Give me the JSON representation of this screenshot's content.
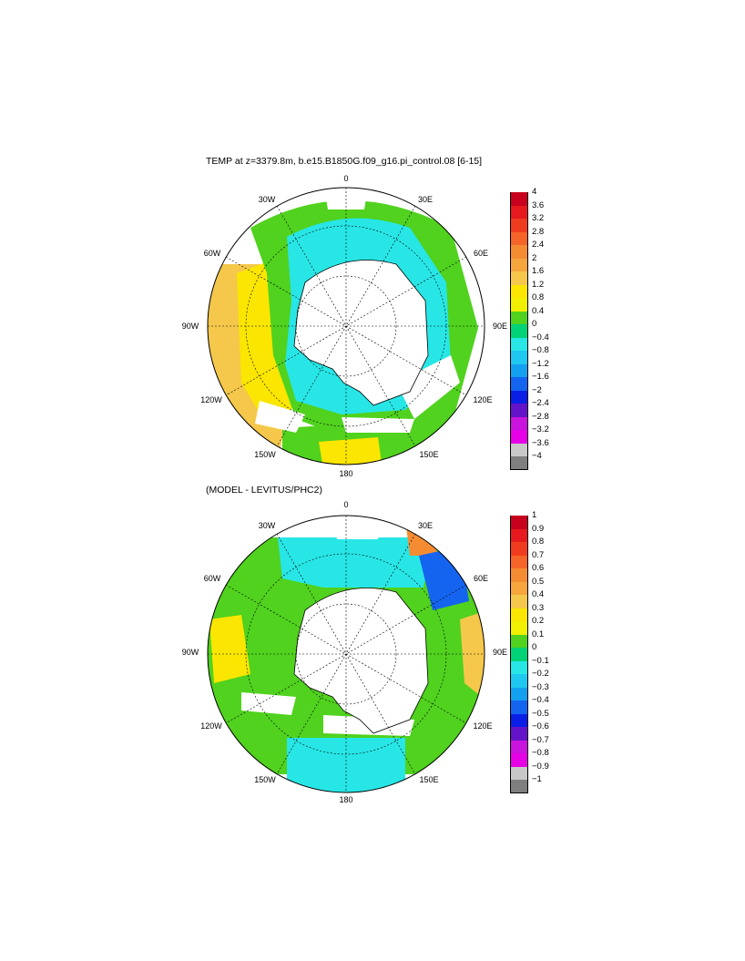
{
  "top_panel": {
    "title": "TEMP at z=3379.8m, b.e15.B1850G.f09_g16.pi_control.08 [6-15]",
    "colorbar": {
      "top_label": "4",
      "labels": [
        "3.6",
        "3.2",
        "2.8",
        "2.4",
        "2",
        "1.6",
        "1.2",
        "0.8",
        "0.4",
        "0",
        "−0.4",
        "−0.8",
        "−1.2",
        "−1.6",
        "−2",
        "−2.4",
        "−2.8",
        "−3.2",
        "−3.6",
        "−4"
      ],
      "colors": [
        "#c8001e",
        "#e6191e",
        "#f03c1e",
        "#f56428",
        "#f58c32",
        "#f5a53c",
        "#f5c84b",
        "#fae600",
        "#f0f000",
        "#50d21e",
        "#00d278",
        "#28e6e6",
        "#1ec8f0",
        "#14a0f0",
        "#1464f0",
        "#0a1ee6",
        "#6414c8",
        "#c814dc",
        "#e600e6",
        "#c8c8c8",
        "#7f7f7f"
      ]
    },
    "lon_labels": {
      "top": "0",
      "l30w": "30W",
      "r30e": "30E",
      "l60w": "60W",
      "r60e": "60E",
      "l90w": "90W",
      "r90e": "90E",
      "l120w": "120W",
      "r120e": "120E",
      "l150w": "150W",
      "r150e": "150E",
      "bottom": "180"
    }
  },
  "bottom_panel": {
    "title": "(MODEL - LEVITUS/PHC2)",
    "colorbar": {
      "top_label": "1",
      "labels": [
        "0.9",
        "0.8",
        "0.7",
        "0.6",
        "0.5",
        "0.4",
        "0.3",
        "0.2",
        "0.1",
        "0",
        "−0.1",
        "−0.2",
        "−0.3",
        "−0.4",
        "−0.5",
        "−0.6",
        "−0.7",
        "−0.8",
        "−0.9",
        "−1"
      ],
      "colors": [
        "#c8001e",
        "#e6191e",
        "#f03c1e",
        "#f56428",
        "#f58c32",
        "#f5a53c",
        "#f5c84b",
        "#fae600",
        "#f0f000",
        "#50d21e",
        "#00d278",
        "#28e6e6",
        "#1ec8f0",
        "#14a0f0",
        "#1464f0",
        "#0a1ee6",
        "#6414c8",
        "#c814dc",
        "#e600e6",
        "#c8c8c8",
        "#7f7f7f"
      ]
    },
    "lon_labels": {
      "top": "0",
      "l30w": "30W",
      "r30e": "30E",
      "l60w": "60W",
      "r60e": "60E",
      "l90w": "90W",
      "r90e": "90E",
      "l120w": "120W",
      "r120e": "120E",
      "l150w": "150W",
      "r150e": "150E",
      "bottom": "180"
    }
  }
}
